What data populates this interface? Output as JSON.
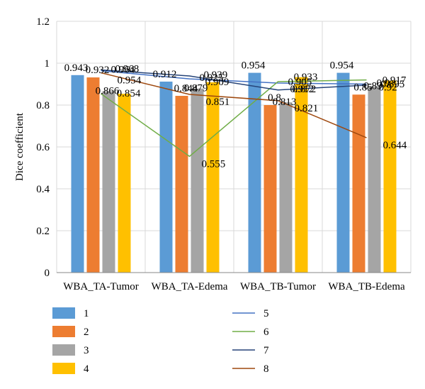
{
  "chart_data": {
    "type": "bar",
    "title": "",
    "xlabel": "",
    "ylabel": "Dice coefficient",
    "ylim": [
      0,
      1.2
    ],
    "yticks": [
      "0",
      "0.2",
      "0.4",
      "0.6",
      "0.8",
      "1",
      "1.2"
    ],
    "grid": true,
    "legend_position": "bottom",
    "categories": [
      "WBA_TA-Tumor",
      "WBA_TA-Edema",
      "WBA_TB-Tumor",
      "WBA_TB-Edema"
    ],
    "bar_series": [
      {
        "name": "1",
        "color": "#5b9bd5",
        "values": [
          0.943,
          0.912,
          0.954,
          0.954
        ],
        "labels": [
          "0.943",
          "0.912",
          "0.954",
          "0.954"
        ]
      },
      {
        "name": "2",
        "color": "#ed7d31",
        "values": [
          0.932,
          0.844,
          0.8,
          0.85
        ],
        "labels": [
          "0.932",
          "0.844",
          "0.8",
          "0.85"
        ]
      },
      {
        "name": "3",
        "color": "#a5a5a5",
        "values": [
          0.866,
          0.879,
          0.813,
          0.89
        ],
        "labels": [
          "0.866",
          "0.879",
          "0.813",
          "0.89"
        ]
      },
      {
        "name": "4",
        "color": "#ffc000",
        "values": [
          0.854,
          0.909,
          0.933,
          0.917
        ],
        "labels": [
          "0.854",
          "0.909",
          "0.933",
          "0.917"
        ]
      }
    ],
    "line_series": [
      {
        "name": "5",
        "color": "#4472c4",
        "values": [
          0.964,
          0.925,
          0.905,
          0.9
        ],
        "labels": [
          "0.964",
          "0.925",
          "0.905",
          "0.9"
        ]
      },
      {
        "name": "6",
        "color": "#70ad47",
        "values": [
          0.854,
          0.555,
          0.912,
          0.92
        ],
        "labels": [
          "",
          "0.555",
          "0.912",
          "0.92"
        ]
      },
      {
        "name": "7",
        "color": "#264478",
        "values": [
          0.968,
          0.939,
          0.872,
          0.895
        ],
        "labels": [
          "0.968",
          "0.939",
          "0.872",
          "0.895"
        ]
      },
      {
        "name": "8",
        "color": "#9e480e",
        "values": [
          0.954,
          0.851,
          0.821,
          0.644
        ],
        "labels": [
          "0.954",
          "0.851",
          "0.821",
          "0.644"
        ]
      }
    ]
  }
}
